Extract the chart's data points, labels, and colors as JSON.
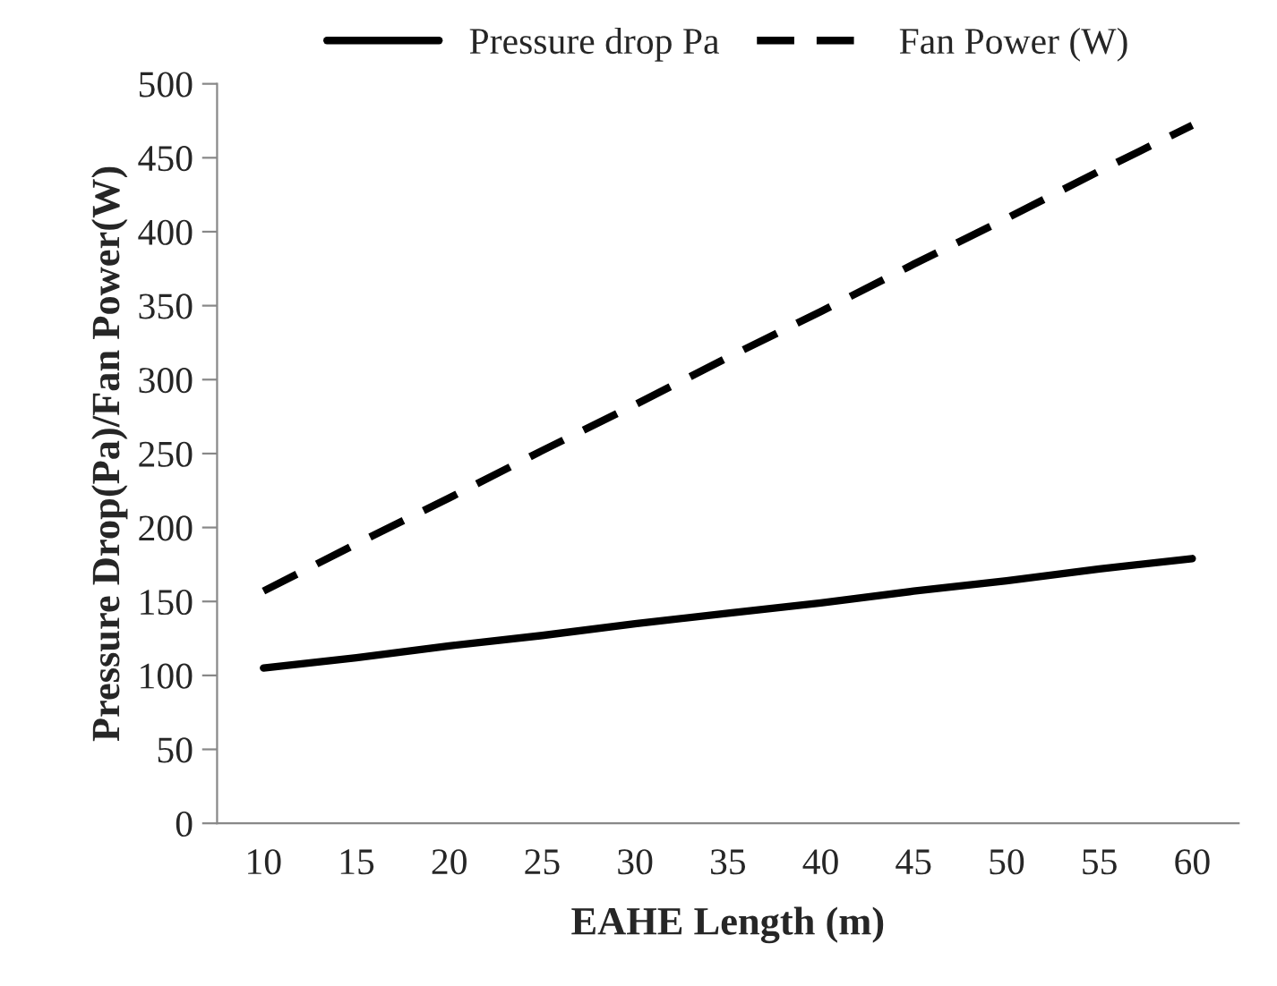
{
  "chart_data": {
    "type": "line",
    "xlabel": "EAHE Length (m)",
    "ylabel": "Pressure Drop(Pa)/Fan Power(W)",
    "categories": [
      "10",
      "15",
      "20",
      "25",
      "30",
      "35",
      "40",
      "45",
      "50",
      "55",
      "60"
    ],
    "series": [
      {
        "name": "Pressure drop Pa",
        "color": "#000000",
        "line_style": "solid",
        "values": [
          105,
          112,
          120,
          127,
          135,
          142,
          149,
          157,
          164,
          172,
          179
        ]
      },
      {
        "name": "Fan Power (W)",
        "color": "#000000",
        "line_style": "dashed",
        "values": [
          157,
          189,
          220,
          252,
          283,
          315,
          346,
          378,
          409,
          441,
          472
        ]
      }
    ],
    "ylim": [
      0,
      500
    ],
    "yticks": [
      0,
      50,
      100,
      150,
      200,
      250,
      300,
      350,
      400,
      450,
      500
    ],
    "grid": false,
    "legend": "top",
    "marker": "none"
  }
}
